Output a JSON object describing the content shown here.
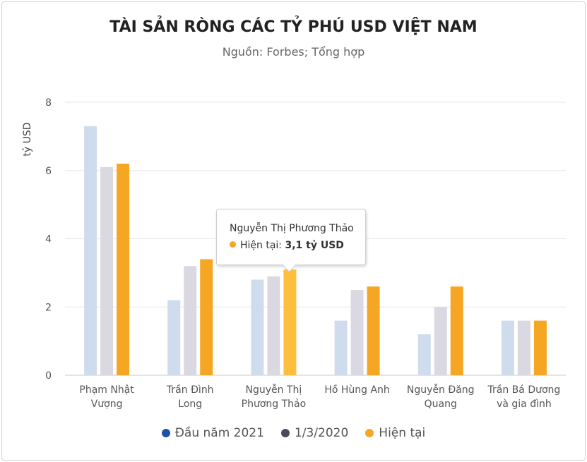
{
  "chart_data": {
    "type": "bar",
    "title": "TÀI SẢN RÒNG CÁC TỶ PHÚ USD VIỆT NAM",
    "subtitle": "Nguồn: Forbes; Tổng hợp",
    "ylabel": "tỷ USD",
    "xlabel": "",
    "ylim": [
      0,
      8
    ],
    "yticks": [
      0,
      2,
      4,
      6,
      8
    ],
    "grid": true,
    "legend_position": "bottom",
    "categories": [
      [
        "Phạm Nhật",
        "Vượng"
      ],
      [
        "Trần Đình",
        "Long"
      ],
      [
        "Nguyễn Thị",
        "Phương Thảo"
      ],
      [
        "Hồ Hùng Anh"
      ],
      [
        "Nguyễn Đăng",
        "Quang"
      ],
      [
        "Trần Bá Dương",
        "và gia đình"
      ]
    ],
    "series": [
      {
        "name": "Đầu năm 2021",
        "values": [
          7.3,
          2.2,
          2.8,
          1.6,
          1.2,
          1.6
        ],
        "color": "#1f4fa8",
        "bar_color": "#cfdcee"
      },
      {
        "name": "1/3/2020",
        "values": [
          6.1,
          3.2,
          2.9,
          2.5,
          2.0,
          1.6
        ],
        "color": "#4a4a5e",
        "bar_color": "#dad9e2"
      },
      {
        "name": "Hiện tại",
        "values": [
          6.2,
          3.4,
          3.1,
          2.6,
          2.6,
          1.6
        ],
        "color": "#f5a623",
        "bar_color": "#f5a623"
      }
    ],
    "tooltip": {
      "name": "Nguyễn Thị Phương Thảo",
      "label": "Hiện tại: ",
      "value": "3,1 tỷ USD",
      "color": "#f5a623"
    }
  }
}
